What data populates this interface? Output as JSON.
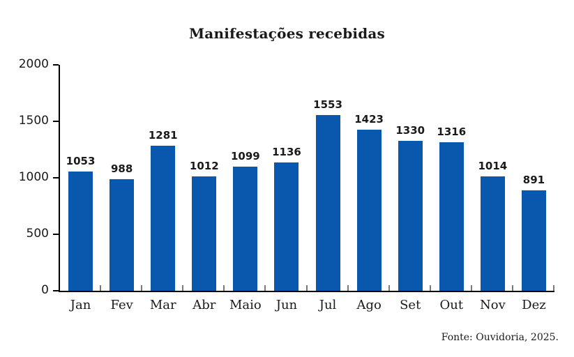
{
  "chart_data": {
    "type": "bar",
    "title": "Manifestações recebidas",
    "categories": [
      "Jan",
      "Fev",
      "Mar",
      "Abr",
      "Maio",
      "Jun",
      "Jul",
      "Ago",
      "Set",
      "Out",
      "Nov",
      "Dez"
    ],
    "values": [
      1053,
      988,
      1281,
      1012,
      1099,
      1136,
      1553,
      1423,
      1330,
      1316,
      1014,
      891
    ],
    "xlabel": "",
    "ylabel": "",
    "ylim": [
      0,
      2000
    ],
    "yticks": [
      0,
      500,
      1000,
      1500,
      2000
    ],
    "bar_color": "#0958ad",
    "value_label_color": "#1a1a1a",
    "axis_color": "#000000",
    "boundary_tick_color": "#7a7a7a",
    "grid": false,
    "legend_position": "none",
    "data_labels": true
  },
  "footer": {
    "source": "Fonte: Ouvidoria, 2025."
  }
}
